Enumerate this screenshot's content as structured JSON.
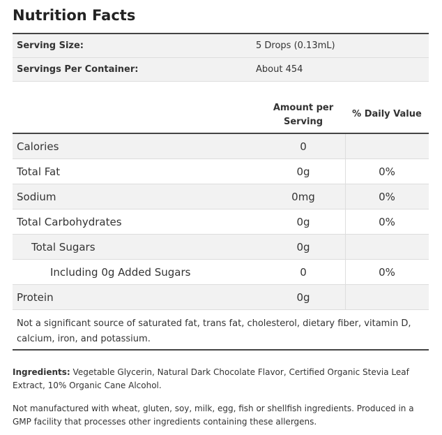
{
  "header": {
    "title": "Nutrition Facts"
  },
  "serving": {
    "rows": [
      [
        "Serving Size:",
        "5 Drops (0.13mL)"
      ],
      [
        "Servings Per Container:",
        "About 454"
      ]
    ]
  },
  "table": {
    "headers": [
      "Amount per Serving",
      "% Daily Value"
    ],
    "rows": [
      [
        "Calories",
        "0",
        null
      ],
      [
        "Total Fat",
        "0g",
        "0%"
      ],
      [
        "Sodium",
        "0mg",
        "0%"
      ],
      [
        "Total Carbohydrates",
        "0g",
        "0%"
      ],
      [
        "Total Sugars",
        "0g",
        null
      ],
      [
        "Including 0g Added Sugars",
        "0",
        "0%"
      ],
      [
        "Protein",
        "0g",
        null
      ]
    ],
    "footnote": "Not a significant source of saturated fat, trans fat, cholesterol, dietary fiber, vitamin D, calcium, iron, and potassium."
  },
  "ingredients": {
    "label": "Ingredients:",
    "text": "Vegetable Glycerin, Natural Dark Chocolate Flavor, Certified Organic Stevia Leaf Extract, 10% Organic Cane Alcohol."
  },
  "allergen_note": "Not manufactured with wheat, gluten, soy, milk, egg, fish or shellfish ingredients. Produced in a GMP facility that processes other ingredients containing these allergens."
}
